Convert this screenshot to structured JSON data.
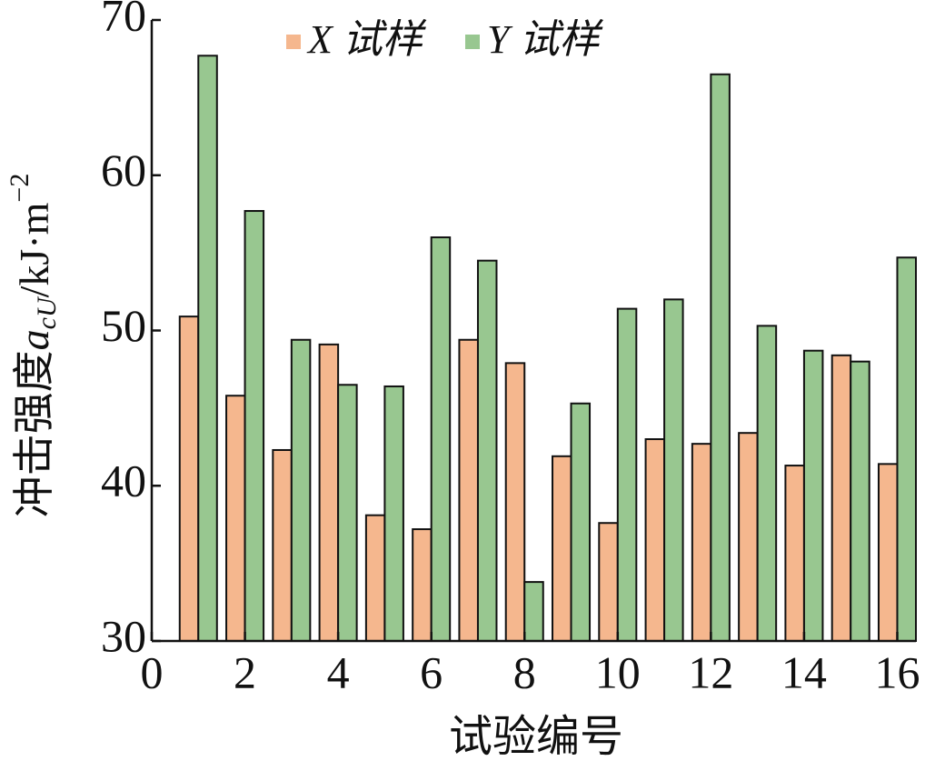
{
  "chart_data": {
    "type": "bar",
    "ylabel": [
      "冲击强度",
      "a",
      "cU",
      "/kJ·m",
      "−2"
    ],
    "xlabel": "试验编号",
    "series": [
      {
        "name": "X 试样",
        "color": "#f5b78e",
        "values": [
          50.9,
          45.8,
          42.3,
          49.1,
          38.1,
          37.2,
          49.4,
          47.9,
          41.9,
          37.6,
          43.0,
          42.7,
          43.4,
          41.3,
          48.4,
          41.4
        ]
      },
      {
        "name": "Y 试样",
        "color": "#98c790",
        "values": [
          67.7,
          57.7,
          49.4,
          46.5,
          46.4,
          56.0,
          54.5,
          33.8,
          45.3,
          51.4,
          52.0,
          66.5,
          50.3,
          48.7,
          48.0,
          54.7
        ]
      }
    ],
    "x": [
      1,
      2,
      3,
      4,
      5,
      6,
      7,
      8,
      9,
      10,
      11,
      12,
      13,
      14,
      15,
      16
    ],
    "xlim": [
      0,
      16.4
    ],
    "xticks": [
      0,
      2,
      4,
      6,
      8,
      10,
      12,
      14,
      16
    ],
    "ylim": [
      30,
      70
    ],
    "yticks": [
      30,
      40,
      50,
      60,
      70
    ]
  }
}
